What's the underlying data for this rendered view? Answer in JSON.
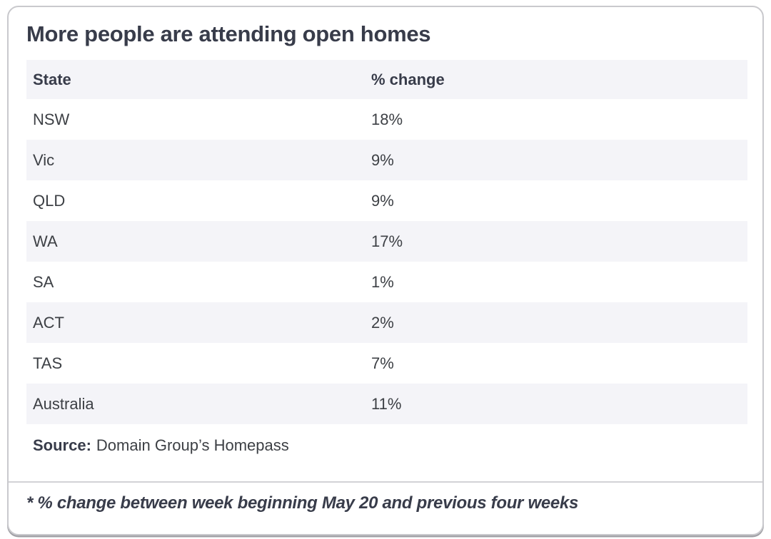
{
  "title": "More people are attending open homes",
  "table": {
    "columns": {
      "state": "State",
      "change": "% change"
    },
    "rows": [
      {
        "state": "NSW",
        "change": "18%"
      },
      {
        "state": "Vic",
        "change": "9%"
      },
      {
        "state": "QLD",
        "change": "9%"
      },
      {
        "state": "WA",
        "change": "17%"
      },
      {
        "state": "SA",
        "change": "1%"
      },
      {
        "state": "ACT",
        "change": "2%"
      },
      {
        "state": "TAS",
        "change": "7%"
      },
      {
        "state": "Australia",
        "change": "11%"
      }
    ]
  },
  "source": {
    "label": "Source:",
    "text": "Domain Group’s Homepass"
  },
  "footnote": "* % change between week beginning May 20 and previous four weeks",
  "colors": {
    "title_text": "#383c4a",
    "body_text": "#3d4045",
    "row_alt_bg": "#f4f4f8",
    "card_border": "#c9c9cd",
    "divider": "#d2d2d6"
  },
  "chart_data": {
    "type": "table",
    "title": "More people are attending open homes",
    "columns": [
      "State",
      "% change"
    ],
    "categories": [
      "NSW",
      "Vic",
      "QLD",
      "WA",
      "SA",
      "ACT",
      "TAS",
      "Australia"
    ],
    "values": [
      18,
      9,
      9,
      17,
      1,
      2,
      7,
      11
    ],
    "unit": "%",
    "source": "Domain Group’s Homepass",
    "note": "* % change between week beginning May 20 and previous four weeks",
    "layout": "zebra-striped rows, header row shaded, values left-aligned in second column"
  }
}
